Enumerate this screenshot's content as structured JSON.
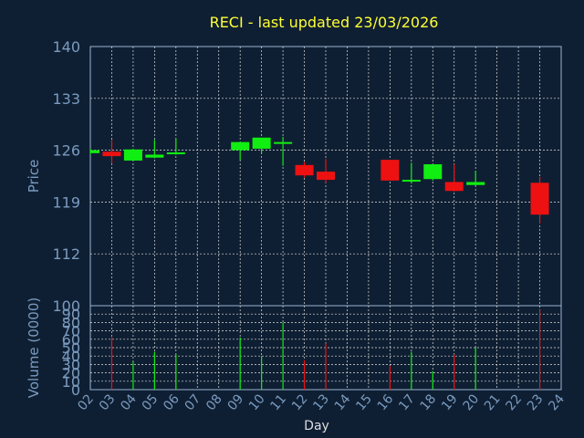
{
  "chart_data": [
    {
      "type": "candlestick",
      "title": "RECI - last updated 23/03/2026",
      "ylabel": "Price",
      "ylim": [
        105,
        140
      ],
      "yticks": [
        140,
        133,
        126,
        119,
        112
      ],
      "grid": true,
      "x": [
        "02",
        "03",
        "04",
        "05",
        "06",
        "09",
        "10",
        "11",
        "12",
        "13",
        "16",
        "17",
        "18",
        "19",
        "20",
        "23"
      ],
      "open": [
        125.6,
        125.8,
        124.6,
        125.0,
        125.5,
        126.0,
        126.2,
        126.9,
        124.0,
        123.1,
        124.7,
        121.8,
        122.1,
        121.7,
        121.3,
        121.6
      ],
      "high": [
        126.2,
        127.4,
        126.2,
        127.4,
        127.6,
        127.1,
        127.6,
        127.8,
        124.4,
        124.8,
        124.7,
        124.3,
        124.1,
        124.1,
        123.2,
        122.4
      ],
      "low": [
        125.4,
        124.2,
        124.6,
        124.9,
        125.4,
        124.7,
        125.6,
        123.9,
        122.3,
        121.6,
        121.9,
        121.5,
        121.9,
        120.4,
        121.2,
        116.1
      ],
      "close": [
        126.0,
        125.2,
        126.1,
        125.4,
        125.7,
        127.1,
        127.7,
        127.1,
        122.6,
        122.0,
        121.9,
        122.0,
        124.1,
        120.5,
        121.7,
        117.3
      ]
    },
    {
      "type": "bar",
      "ylabel": "Volume (0000)",
      "xlabel": "Day",
      "ylim": [
        0,
        100
      ],
      "yticks": [
        100,
        90,
        80,
        70,
        60,
        50,
        40,
        30,
        20,
        10,
        0
      ],
      "grid": true,
      "xtick_labels": [
        "02",
        "03",
        "04",
        "05",
        "06",
        "07",
        "08",
        "09",
        "10",
        "11",
        "12",
        "13",
        "14",
        "15",
        "16",
        "17",
        "18",
        "19",
        "20",
        "21",
        "22",
        "23",
        "24"
      ],
      "categories": [
        "02",
        "03",
        "04",
        "05",
        "06",
        "09",
        "10",
        "11",
        "12",
        "13",
        "16",
        "17",
        "18",
        "19",
        "20",
        "23"
      ],
      "values": [
        0,
        62,
        33,
        45,
        42,
        62,
        40,
        80,
        35,
        55,
        28,
        45,
        22,
        42,
        50,
        95
      ]
    }
  ],
  "colors": {
    "background": "#0f1f33",
    "title": "#ffff33",
    "axis_text": "#7a9bbf",
    "grid": "#e0e0e0",
    "up": "#11ee11",
    "down": "#ee1111"
  }
}
